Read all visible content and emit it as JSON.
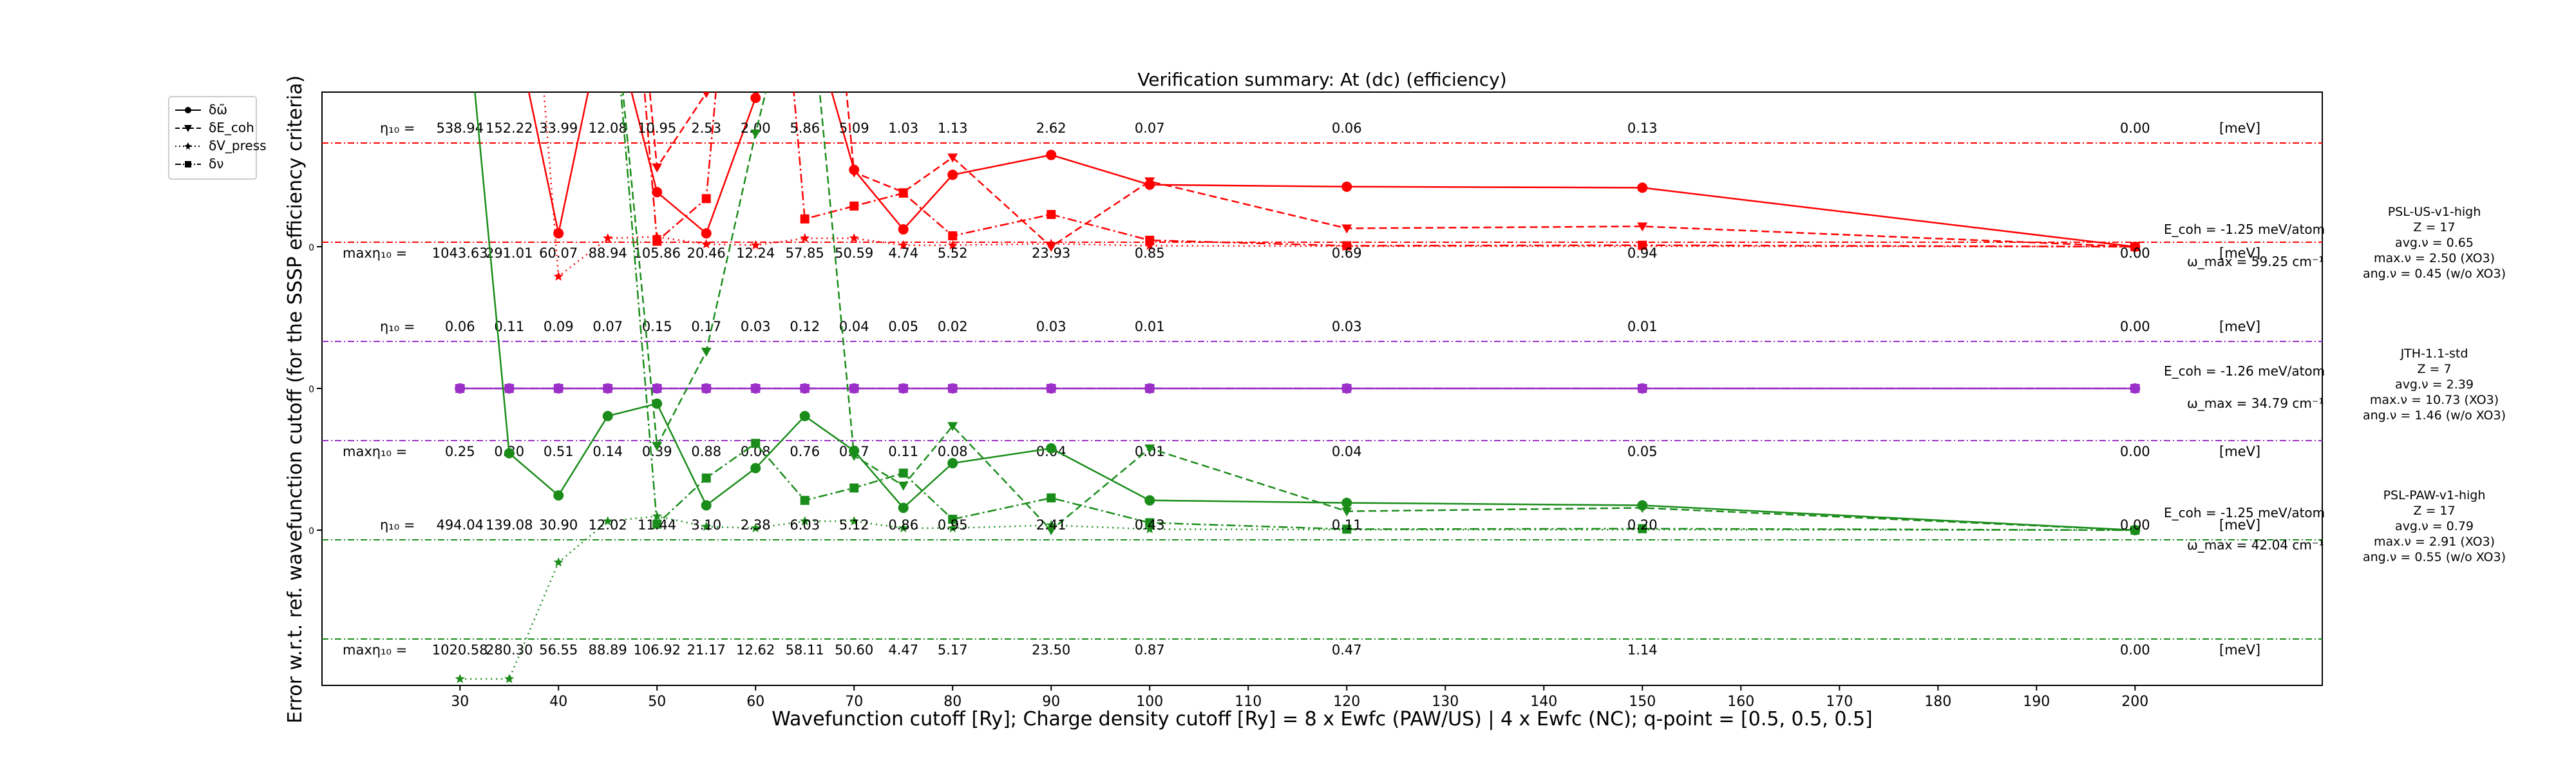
{
  "chart_data": {
    "type": "line",
    "title": "Verification summary: At (dc) (efficiency)",
    "xlabel": "Wavefunction cutoff [Ry]; Charge density cutoff [Ry] = 8 x Ewfc (PAW/US) | 4 x Ewfc (NC); q-point = [0.5, 0.5, 0.5]",
    "ylabel": "Error w.r.t. ref. wavefunction cutoff (for the SSSP efficiency criteria)",
    "xlim": [
      16,
      219
    ],
    "x_ticks": [
      30,
      40,
      50,
      60,
      70,
      80,
      90,
      100,
      110,
      120,
      130,
      140,
      150,
      160,
      170,
      180,
      190,
      200
    ],
    "ytick_label": "0",
    "grid": false,
    "legend_position": "top-left (outside)",
    "legend": [
      {
        "label": "δω̃",
        "style": "solid",
        "marker": "circle"
      },
      {
        "label": "δE_coh",
        "style": "dashed",
        "marker": "triangle-down"
      },
      {
        "label": "δV_press",
        "style": "dotted",
        "marker": "star"
      },
      {
        "label": "δν",
        "style": "dashdot",
        "marker": "square"
      }
    ],
    "x": [
      30,
      35,
      40,
      45,
      50,
      55,
      60,
      65,
      70,
      75,
      80,
      90,
      100,
      120,
      150,
      200
    ],
    "eta_label": "η₁₀ =",
    "max_eta_label": "maxη₁₀ =",
    "unit_label": "[meV]",
    "panels": [
      {
        "name": "PSL-US-v1-high",
        "color": "#ff0000",
        "info": [
          "PSL-US-v1-high",
          "Z = 17",
          "avg.ν = 0.65",
          "max.ν = 2.50 (XO3)",
          "ang.ν = 0.45 (w/o XO3)"
        ],
        "ecoh_note": "E_coh = -1.25 meV/atom",
        "omega_note": "ω_max = 59.25 cm⁻¹",
        "eta": [
          "538.94",
          "152.22",
          "33.99",
          "12.08",
          "10.95",
          "2.53",
          "2.00",
          "5.86",
          "5.09",
          "1.03",
          "1.13",
          "2.62",
          "0.07",
          "0.06",
          "0.13",
          "0.00"
        ],
        "max_eta": [
          "1043.63",
          "291.01",
          "60.07",
          "88.94",
          "105.86",
          "20.46",
          "12.24",
          "57.85",
          "50.59",
          "4.74",
          "5.52",
          "23.93",
          "0.85",
          "0.69",
          "0.94",
          "0.00"
        ],
        "series": {
          "omega": [
            12,
            5,
            0.27,
            5,
            1.1,
            0.27,
            3,
            5,
            1.55,
            0.35,
            1.45,
            1.85,
            1.25,
            1.21,
            1.19,
            0.0
          ],
          "ecoh": [
            12,
            12,
            12,
            12,
            1.6,
            3.1,
            8,
            12,
            1.5,
            1.1,
            1.8,
            0.0,
            1.32,
            0.37,
            0.41,
            0.0
          ],
          "vpress": [
            12,
            12,
            -0.6,
            0.17,
            0.2,
            0.05,
            0.03,
            0.17,
            0.17,
            0.03,
            0.03,
            0.06,
            0.02,
            0.01,
            0.01,
            0.0
          ],
          "nu": [
            12,
            12,
            12,
            12,
            0.11,
            0.97,
            12,
            0.56,
            0.82,
            1.08,
            0.22,
            0.65,
            0.13,
            0.02,
            0.03,
            0.0
          ]
        }
      },
      {
        "name": "JTH-1.1-std",
        "color": "#9b30c8",
        "info": [
          "JTH-1.1-std",
          "Z = 7",
          "avg.ν = 2.39",
          "max.ν = 10.73 (XO3)",
          "ang.ν = 1.46 (w/o XO3)"
        ],
        "ecoh_note": "E_coh = -1.26 meV/atom",
        "omega_note": "ω_max = 34.79 cm⁻¹",
        "eta": [
          "0.06",
          "0.11",
          "0.09",
          "0.07",
          "0.15",
          "0.17",
          "0.03",
          "0.12",
          "0.04",
          "0.05",
          "0.02",
          "0.03",
          "0.01",
          "0.03",
          "0.01",
          "0.00"
        ],
        "max_eta": [
          "0.25",
          "0.30",
          "0.51",
          "0.14",
          "0.39",
          "0.88",
          "0.08",
          "0.76",
          "0.17",
          "0.11",
          "0.08",
          "0.04",
          "0.01",
          "0.04",
          "0.05",
          "0.00"
        ],
        "series": {
          "omega": [
            0.0,
            0.0,
            0.0,
            0.0,
            0.0,
            0.0,
            0.0,
            0.0,
            0.0,
            0.0,
            0.0,
            0.0,
            0.0,
            0.0,
            0.0,
            0.0
          ],
          "ecoh": [
            0.0,
            0.0,
            0.0,
            0.0,
            0.0,
            0.0,
            0.0,
            0.0,
            0.0,
            0.0,
            0.0,
            0.0,
            0.0,
            0.0,
            0.0,
            0.0
          ],
          "vpress": [
            0.0,
            0.0,
            0.0,
            0.0,
            0.0,
            0.0,
            0.0,
            0.0,
            0.0,
            0.0,
            0.0,
            0.0,
            0.0,
            0.0,
            0.0,
            0.0
          ],
          "nu": [
            0.0,
            0.0,
            0.0,
            0.0,
            0.0,
            0.0,
            0.0,
            0.0,
            0.0,
            0.0,
            0.0,
            0.0,
            0.0,
            0.0,
            0.0,
            0.0
          ]
        }
      },
      {
        "name": "PSL-PAW-v1-high",
        "color": "#1a8c1a",
        "info": [
          "PSL-PAW-v1-high",
          "Z = 17",
          "avg.ν = 0.79",
          "max.ν = 2.91 (XO3)",
          "ang.ν = 0.55 (w/o XO3)"
        ],
        "ecoh_note": "E_coh = -1.25 meV/atom",
        "omega_note": "ω_max = 42.04 cm⁻¹",
        "eta": [
          "494.04",
          "139.08",
          "30.90",
          "12.02",
          "11.44",
          "3.10",
          "2.38",
          "6.03",
          "5.12",
          "0.86",
          "0.95",
          "2.41",
          "0.43",
          "0.11",
          "0.20",
          "0.00"
        ],
        "max_eta": [
          "1020.58",
          "280.30",
          "56.55",
          "88.89",
          "106.92",
          "21.17",
          "12.62",
          "58.11",
          "50.60",
          "4.47",
          "5.17",
          "23.50",
          "0.87",
          "0.47",
          "1.14",
          "0.00"
        ],
        "series": {
          "omega": [
            12,
            1.55,
            0.7,
            2.3,
            2.55,
            0.5,
            1.25,
            2.3,
            1.6,
            0.45,
            1.35,
            1.65,
            0.6,
            0.55,
            0.5,
            0.0
          ],
          "ecoh": [
            12,
            12,
            12,
            12,
            1.7,
            3.6,
            8,
            12,
            1.5,
            0.9,
            2.1,
            0.0,
            1.65,
            0.38,
            0.45,
            0.0
          ],
          "vpress": [
            -3,
            -3,
            -0.65,
            0.18,
            0.28,
            0.07,
            0.04,
            0.18,
            0.18,
            0.04,
            0.04,
            0.1,
            0.02,
            0.01,
            0.01,
            0.0
          ],
          "nu": [
            12,
            12,
            12,
            12,
            0.12,
            1.05,
            1.75,
            0.6,
            0.85,
            1.15,
            0.22,
            0.65,
            0.15,
            0.02,
            0.03,
            0.0
          ]
        }
      }
    ]
  }
}
